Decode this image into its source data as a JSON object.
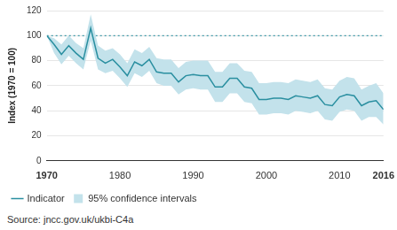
{
  "chart_data": {
    "type": "line",
    "y_label": "Index (1970 = 100)",
    "source": "Source: jncc.gov.uk/ukbi-C4a",
    "x": [
      1970,
      1971,
      1972,
      1973,
      1974,
      1975,
      1976,
      1977,
      1978,
      1979,
      1980,
      1981,
      1982,
      1983,
      1984,
      1985,
      1986,
      1987,
      1988,
      1989,
      1990,
      1991,
      1992,
      1993,
      1994,
      1995,
      1996,
      1997,
      1998,
      1999,
      2000,
      2001,
      2002,
      2003,
      2004,
      2005,
      2006,
      2007,
      2008,
      2009,
      2010,
      2011,
      2012,
      2013,
      2014,
      2015,
      2016
    ],
    "series": [
      {
        "name": "Indicator",
        "color": "#2a8fa0",
        "line_style": "solid",
        "values": [
          100,
          93,
          85,
          92,
          86,
          81,
          106,
          82,
          78,
          81,
          75,
          68,
          79,
          76,
          81,
          71,
          70,
          70,
          63,
          68,
          69,
          68,
          68,
          59,
          59,
          66,
          66,
          59,
          58,
          49,
          49,
          50,
          50,
          49,
          52,
          51,
          50,
          52,
          45,
          44,
          51,
          53,
          52,
          44,
          47,
          48,
          41
        ]
      }
    ],
    "confidence_interval": {
      "name": "95% confidence intervals",
      "color": "#c3e2eb",
      "lower": [
        100,
        86,
        77,
        84,
        78,
        73,
        96,
        73,
        70,
        72,
        66,
        59,
        70,
        67,
        72,
        62,
        60,
        60,
        53,
        57,
        58,
        57,
        57,
        47,
        47,
        54,
        54,
        47,
        46,
        37,
        37,
        38,
        38,
        37,
        40,
        39,
        38,
        40,
        33,
        32,
        39,
        41,
        40,
        32,
        35,
        35,
        29
      ],
      "upper": [
        100,
        98,
        93,
        100,
        94,
        90,
        117,
        92,
        88,
        90,
        85,
        78,
        89,
        86,
        91,
        82,
        81,
        81,
        74,
        79,
        80,
        80,
        80,
        71,
        71,
        78,
        78,
        72,
        71,
        62,
        62,
        63,
        63,
        62,
        65,
        64,
        63,
        65,
        58,
        57,
        64,
        67,
        66,
        57,
        60,
        62,
        54
      ]
    },
    "reference_line": 100,
    "reference_line_style": "dotted",
    "xlim": [
      1970,
      2016
    ],
    "xticks": [
      1970,
      1980,
      1990,
      2000,
      2010,
      2016
    ],
    "ylim": [
      0,
      120
    ],
    "yticks": [
      0,
      20,
      40,
      60,
      80,
      100,
      120
    ],
    "grid": true,
    "legend": "bottom"
  }
}
